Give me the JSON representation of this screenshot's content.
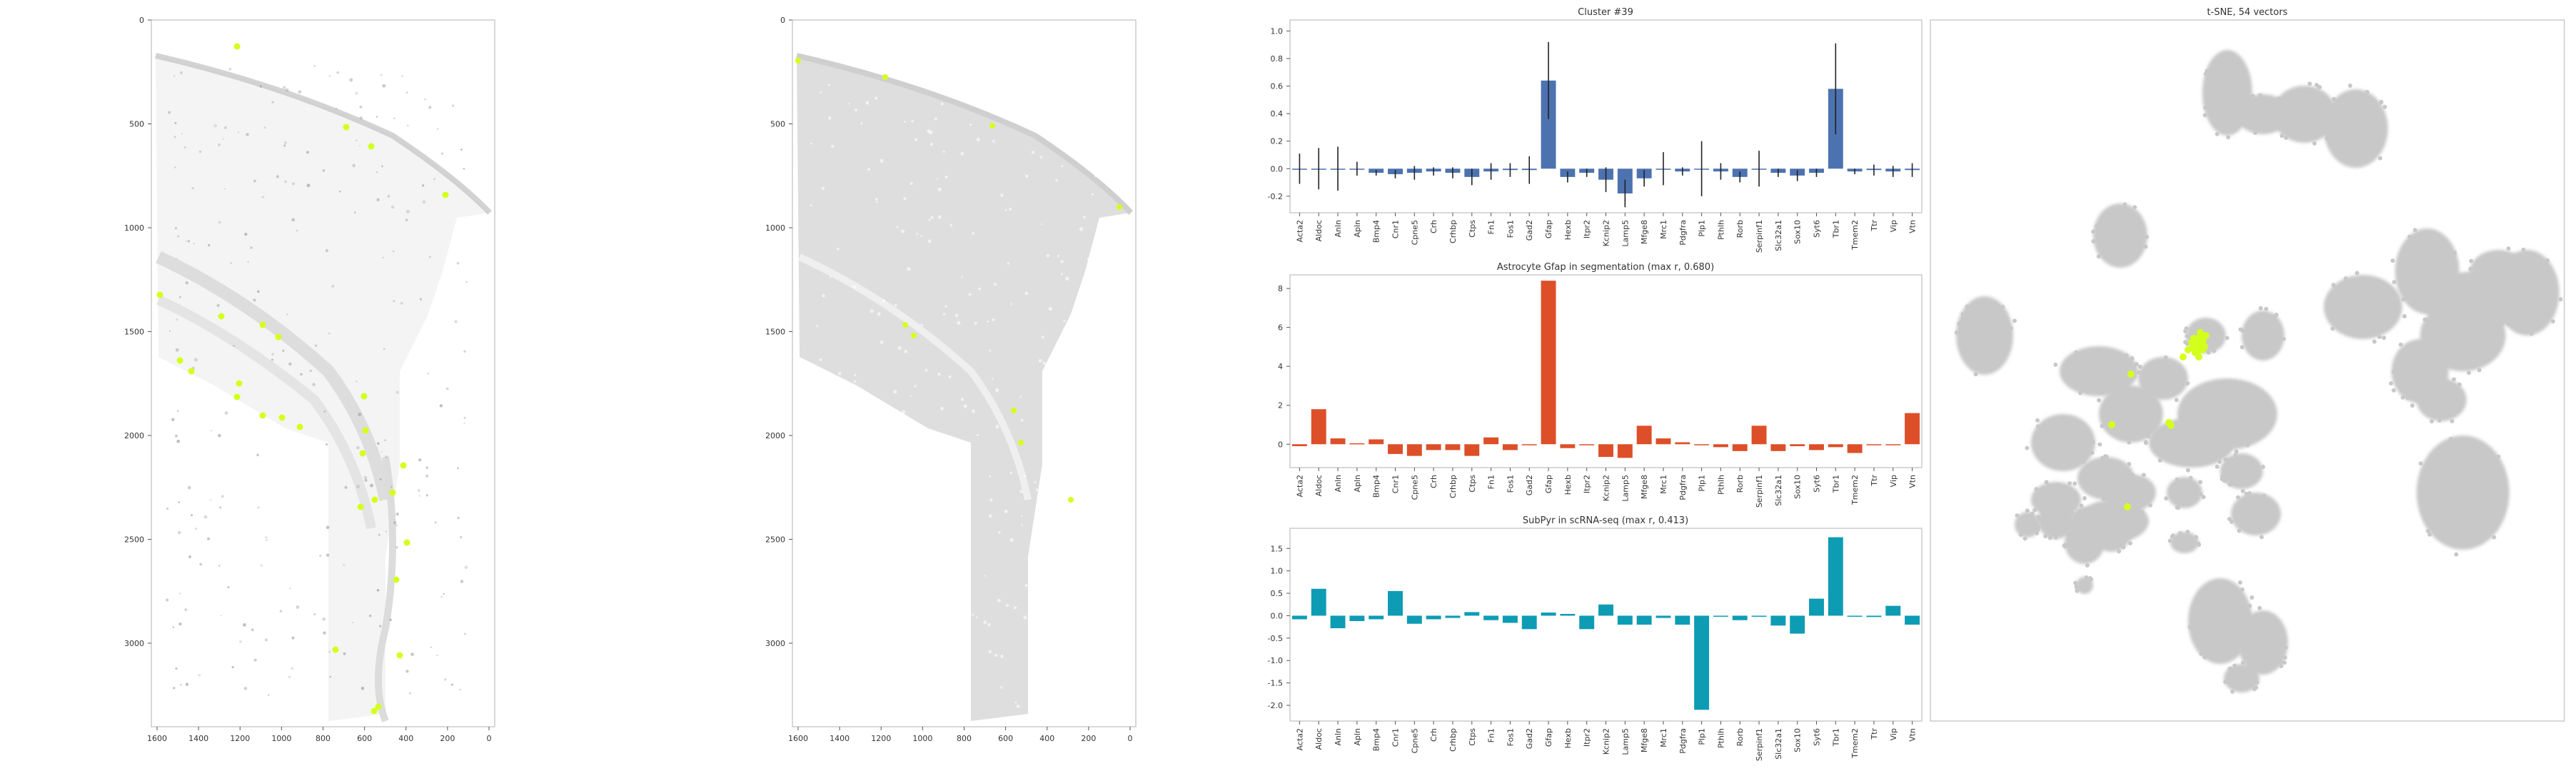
{
  "colors": {
    "bar_top": "#4c72b0",
    "bar_mid": "#dd4f28",
    "bar_bottom": "#0e9cb4",
    "highlight": "#d4ff1c",
    "tsne_points": "#c8c8c8",
    "tissue_points": "#d6d6d6"
  },
  "images": [
    {
      "type": "scatter-image",
      "xticks": [
        "1600",
        "1400",
        "1200",
        "1000",
        "800",
        "600",
        "400",
        "200",
        "0"
      ],
      "yticks": [
        "0",
        "500",
        "1000",
        "1500",
        "2000",
        "2500",
        "3000"
      ]
    },
    {
      "type": "scatter-image",
      "xticks": [
        "1600",
        "1400",
        "1200",
        "1000",
        "800",
        "600",
        "400",
        "200",
        "0"
      ],
      "yticks": [
        "0",
        "500",
        "1000",
        "1500",
        "2000",
        "2500",
        "3000"
      ]
    }
  ],
  "chart_data": [
    {
      "type": "bar",
      "title": "Cluster #39",
      "categories": [
        "Acta2",
        "Aldoc",
        "Anln",
        "Apln",
        "Bmp4",
        "Cnr1",
        "Cpne5",
        "Crh",
        "Crhbp",
        "Ctps",
        "Fn1",
        "Fos1",
        "Gad2",
        "Gfap",
        "Hexb",
        "Itpr2",
        "Kcnip2",
        "Lamp5",
        "Mfge8",
        "Mrc1",
        "Pdgfra",
        "Plp1",
        "Pthlh",
        "Rorb",
        "Serpinf1",
        "Slc32a1",
        "Sox10",
        "Syt6",
        "Tbr1",
        "Tmem2",
        "Ttr",
        "Vip",
        "Vtn"
      ],
      "values": [
        0.0,
        0.0,
        0.0,
        0.0,
        -0.03,
        -0.04,
        -0.03,
        -0.02,
        -0.03,
        -0.06,
        -0.02,
        -0.01,
        -0.01,
        0.64,
        -0.06,
        -0.03,
        -0.08,
        -0.18,
        -0.07,
        0.0,
        -0.02,
        0.0,
        -0.02,
        -0.06,
        0.0,
        -0.03,
        -0.05,
        -0.03,
        0.58,
        -0.02,
        -0.01,
        -0.02,
        -0.01
      ],
      "errors": [
        0.11,
        0.15,
        0.16,
        0.05,
        0.02,
        0.03,
        0.05,
        0.03,
        0.04,
        0.06,
        0.06,
        0.05,
        0.1,
        0.28,
        0.04,
        0.03,
        0.09,
        0.1,
        0.06,
        0.12,
        0.03,
        0.2,
        0.06,
        0.04,
        0.13,
        0.03,
        0.04,
        0.03,
        0.33,
        0.02,
        0.04,
        0.04,
        0.05
      ],
      "yticks": [
        -0.2,
        0.0,
        0.2,
        0.4,
        0.6,
        0.8,
        1.0
      ],
      "ylim": [
        -0.32,
        1.08
      ]
    },
    {
      "type": "bar",
      "title": "Astrocyte Gfap in segmentation (max r, 0.680)",
      "categories": [
        "Acta2",
        "Aldoc",
        "Anln",
        "Apln",
        "Bmp4",
        "Cnr1",
        "Cpne5",
        "Crh",
        "Crhbp",
        "Ctps",
        "Fn1",
        "Fos1",
        "Gad2",
        "Gfap",
        "Hexb",
        "Itpr2",
        "Kcnip2",
        "Lamp5",
        "Mfge8",
        "Mrc1",
        "Pdgfra",
        "Plp1",
        "Pthlh",
        "Rorb",
        "Serpinf1",
        "Slc32a1",
        "Sox10",
        "Syt6",
        "Tbr1",
        "Tmem2",
        "Ttr",
        "Vip",
        "Vtn"
      ],
      "values": [
        -0.1,
        1.8,
        0.3,
        0.05,
        0.25,
        -0.5,
        -0.6,
        -0.3,
        -0.3,
        -0.6,
        0.35,
        -0.3,
        0.0,
        8.4,
        -0.2,
        0.0,
        -0.65,
        -0.7,
        0.95,
        0.3,
        0.1,
        0.0,
        -0.15,
        -0.35,
        0.95,
        -0.35,
        -0.1,
        -0.3,
        -0.15,
        -0.45,
        0.0,
        0.0,
        1.6
      ],
      "yticks": [
        0,
        2,
        4,
        6,
        8
      ],
      "ylim": [
        -1.2,
        8.7
      ]
    },
    {
      "type": "bar",
      "title": "SubPyr in scRNA-seq (max r, 0.413)",
      "categories": [
        "Acta2",
        "Aldoc",
        "Anln",
        "Apln",
        "Bmp4",
        "Cnr1",
        "Cpne5",
        "Crh",
        "Crhbp",
        "Ctps",
        "Fn1",
        "Fos1",
        "Gad2",
        "Gfap",
        "Hexb",
        "Itpr2",
        "Kcnip2",
        "Lamp5",
        "Mfge8",
        "Mrc1",
        "Pdgfra",
        "Plp1",
        "Pthlh",
        "Rorb",
        "Serpinf1",
        "Slc32a1",
        "Sox10",
        "Syt6",
        "Tbr1",
        "Tmem2",
        "Ttr",
        "Vip",
        "Vtn"
      ],
      "values": [
        -0.08,
        0.6,
        -0.28,
        -0.12,
        -0.08,
        0.55,
        -0.18,
        -0.08,
        -0.05,
        0.08,
        -0.1,
        -0.16,
        -0.3,
        0.07,
        0.04,
        -0.3,
        0.25,
        -0.2,
        -0.2,
        -0.05,
        -0.2,
        -2.1,
        -0.01,
        -0.1,
        -0.02,
        -0.22,
        -0.4,
        0.38,
        1.75,
        0.0,
        -0.03,
        0.22,
        -0.2
      ],
      "yticks": [
        -2.0,
        -1.5,
        -1.0,
        -0.5,
        0.0,
        0.5,
        1.0,
        1.5
      ],
      "ylim": [
        -2.35,
        1.95
      ]
    },
    {
      "type": "scatter",
      "title": "t-SNE, 54 vectors"
    }
  ]
}
